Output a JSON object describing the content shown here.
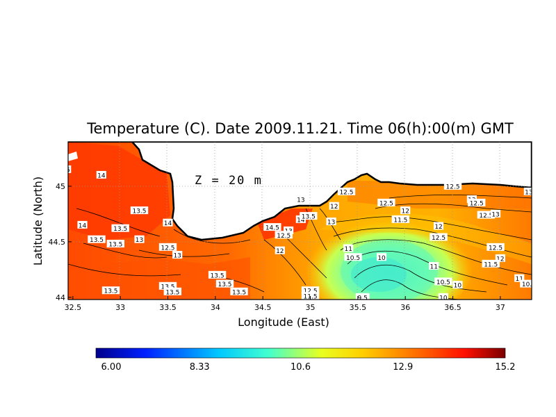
{
  "title": "Temperature (C). Date 2009.11.21. Time 06(h):00(m) GMT",
  "depth_label": "Z = 20 m",
  "xlabel": "Longitude (East)",
  "ylabel": "Latitude (North)",
  "x_ticks": [
    "32.5",
    "33",
    "33.5",
    "34",
    "34.5",
    "35",
    "35.5",
    "36",
    "36.5",
    "37"
  ],
  "y_ticks": [
    "44",
    "44.5",
    "45"
  ],
  "colorbar": {
    "ticks": [
      "6.00",
      "8.33",
      "10.6",
      "12.9",
      "15.2"
    ],
    "min": 6.0,
    "max": 15.2
  },
  "contour_labels": [
    {
      "text": "14",
      "lon": 32.8,
      "lat": 45.1
    },
    {
      "text": "13.5",
      "lon": 33.2,
      "lat": 44.78
    },
    {
      "text": "14",
      "lon": 32.6,
      "lat": 44.65
    },
    {
      "text": "13.5",
      "lon": 33.0,
      "lat": 44.62
    },
    {
      "text": "13.5",
      "lon": 32.75,
      "lat": 44.52
    },
    {
      "text": "13.5",
      "lon": 32.95,
      "lat": 44.48
    },
    {
      "text": "13",
      "lon": 33.2,
      "lat": 44.52
    },
    {
      "text": "14",
      "lon": 33.5,
      "lat": 44.67
    },
    {
      "text": "12.5",
      "lon": 33.5,
      "lat": 44.45
    },
    {
      "text": "13",
      "lon": 33.6,
      "lat": 44.38
    },
    {
      "text": "13.5",
      "lon": 32.9,
      "lat": 44.06
    },
    {
      "text": "13.5",
      "lon": 33.5,
      "lat": 44.1
    },
    {
      "text": "13.5",
      "lon": 33.55,
      "lat": 44.05
    },
    {
      "text": "13.5",
      "lon": 34.02,
      "lat": 44.2
    },
    {
      "text": "13.5",
      "lon": 34.1,
      "lat": 44.12
    },
    {
      "text": "13.5",
      "lon": 34.25,
      "lat": 44.05
    },
    {
      "text": "14.5",
      "lon": 34.6,
      "lat": 44.63
    },
    {
      "text": "13",
      "lon": 34.77,
      "lat": 44.6
    },
    {
      "text": "12.5",
      "lon": 34.72,
      "lat": 44.56
    },
    {
      "text": "14",
      "lon": 34.9,
      "lat": 44.7
    },
    {
      "text": "13",
      "lon": 34.9,
      "lat": 44.88
    },
    {
      "text": "13.5",
      "lon": 34.98,
      "lat": 44.73
    },
    {
      "text": "12",
      "lon": 34.68,
      "lat": 44.42
    },
    {
      "text": "12",
      "lon": 35.25,
      "lat": 44.82
    },
    {
      "text": "12.5",
      "lon": 35.38,
      "lat": 44.95
    },
    {
      "text": "13",
      "lon": 35.22,
      "lat": 44.68
    },
    {
      "text": "12.5",
      "lon": 35.0,
      "lat": 44.06
    },
    {
      "text": "11.5",
      "lon": 35.0,
      "lat": 44.01
    },
    {
      "text": "11",
      "lon": 35.4,
      "lat": 44.44
    },
    {
      "text": "10.5",
      "lon": 35.45,
      "lat": 44.36
    },
    {
      "text": "10",
      "lon": 35.75,
      "lat": 44.36
    },
    {
      "text": "9.5",
      "lon": 35.55,
      "lat": 44.0
    },
    {
      "text": "12.5",
      "lon": 35.8,
      "lat": 44.85
    },
    {
      "text": "12",
      "lon": 36.0,
      "lat": 44.78
    },
    {
      "text": "11.5",
      "lon": 35.95,
      "lat": 44.7
    },
    {
      "text": "12",
      "lon": 36.35,
      "lat": 44.64
    },
    {
      "text": "12.5",
      "lon": 36.35,
      "lat": 44.54
    },
    {
      "text": "12.5",
      "lon": 36.5,
      "lat": 45.0
    },
    {
      "text": "13",
      "lon": 36.7,
      "lat": 44.88
    },
    {
      "text": "12.5",
      "lon": 36.75,
      "lat": 44.85
    },
    {
      "text": "12.5",
      "lon": 36.95,
      "lat": 44.45
    },
    {
      "text": "12.5",
      "lon": 36.85,
      "lat": 44.74
    },
    {
      "text": "13",
      "lon": 36.95,
      "lat": 44.75
    },
    {
      "text": "13",
      "lon": 37.3,
      "lat": 44.95
    },
    {
      "text": "12",
      "lon": 37.0,
      "lat": 44.35
    },
    {
      "text": "11.5",
      "lon": 36.9,
      "lat": 44.3
    },
    {
      "text": "11",
      "lon": 36.3,
      "lat": 44.28
    },
    {
      "text": "10.5",
      "lon": 36.4,
      "lat": 44.14
    },
    {
      "text": "10",
      "lon": 36.55,
      "lat": 44.11
    },
    {
      "text": "10",
      "lon": 36.4,
      "lat": 44.0
    },
    {
      "text": "11",
      "lon": 37.2,
      "lat": 44.17
    },
    {
      "text": "10.5",
      "lon": 37.3,
      "lat": 44.12
    },
    {
      "text": "12",
      "lon": 37.65,
      "lat": 44.45
    },
    {
      "text": "5",
      "lon": 32.45,
      "lat": 45.15
    }
  ]
}
